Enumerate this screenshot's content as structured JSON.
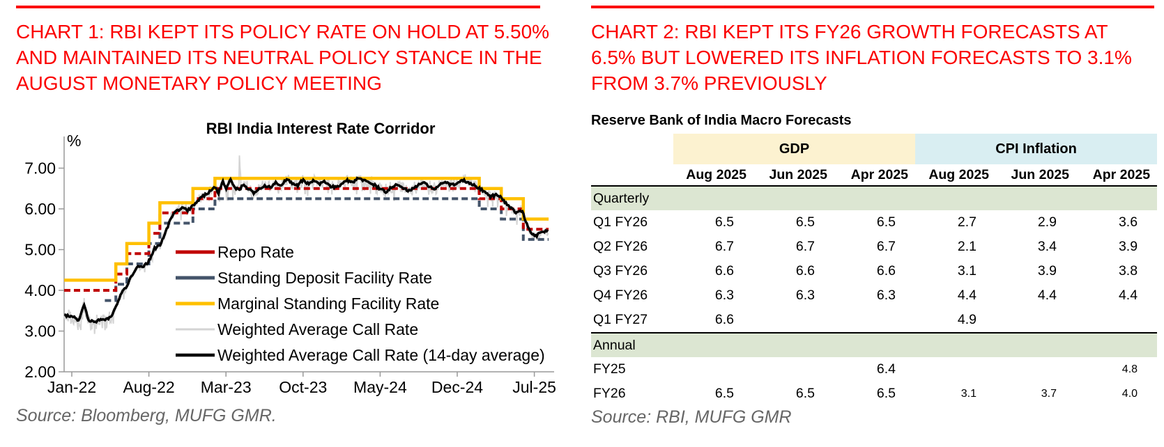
{
  "accent_red": "#fb0000",
  "left_panel": {
    "heading": "CHART 1: RBI KEPT ITS POLICY RATE ON HOLD AT 5.50%\nAND MAINTAINED ITS NEUTRAL POLICY STANCE IN THE\nAUGUST MONETARY POLICY MEETING",
    "source": "Source: Bloomberg, MUFG GMR."
  },
  "right_panel": {
    "heading": "CHART 2: RBI KEPT ITS FY26 GROWTH FORECASTS AT\n6.5% BUT LOWERED ITS INFLATION FORECASTS TO 3.1%\nFROM 3.7% PREVIOUSLY",
    "source": "Source: RBI, MUFG GMR"
  },
  "chart_data": [
    {
      "type": "line",
      "title": "RBI India Interest Rate Corridor",
      "ylabel": "%",
      "ylim": [
        2.0,
        7.6
      ],
      "yticks": [
        2,
        3,
        4,
        5,
        6,
        7
      ],
      "ytick_format": "0.00",
      "x_unit": "months since Jan-2022",
      "x_end": 43.3,
      "xtick_months": [
        0,
        7,
        14,
        21,
        28,
        35,
        42
      ],
      "xtick_labels": [
        "Jan-22",
        "Aug-22",
        "Mar-23",
        "Oct-23",
        "May-24",
        "Dec-24",
        "Jul-25"
      ],
      "legend_position": "inside lower-left",
      "grid": false,
      "axis_color": "#999999",
      "wacr_anchors": [
        [
          0,
          3.38
        ],
        [
          0.6,
          3.24
        ],
        [
          1.1,
          3.66
        ],
        [
          1.5,
          3.28
        ],
        [
          2,
          3.22
        ],
        [
          2.5,
          3.26
        ],
        [
          3,
          3.28
        ],
        [
          3.5,
          3.33
        ],
        [
          4,
          3.6
        ],
        [
          4.5,
          3.92
        ],
        [
          5,
          4.12
        ],
        [
          5.5,
          4.38
        ],
        [
          6,
          4.6
        ],
        [
          6.5,
          4.56
        ],
        [
          7,
          4.72
        ],
        [
          7.5,
          5.02
        ],
        [
          8,
          5.12
        ],
        [
          8.5,
          5.4
        ],
        [
          9,
          5.78
        ],
        [
          9.5,
          5.96
        ],
        [
          10,
          6.02
        ],
        [
          10.5,
          5.96
        ],
        [
          11,
          6.08
        ],
        [
          11.5,
          6.22
        ],
        [
          12,
          6.32
        ],
        [
          12.5,
          6.42
        ],
        [
          13,
          6.56
        ],
        [
          13.3,
          6.38
        ],
        [
          13.7,
          6.68
        ],
        [
          14,
          6.48
        ],
        [
          14.4,
          6.72
        ],
        [
          14.8,
          6.52
        ],
        [
          15.2,
          6.45
        ],
        [
          15.6,
          6.62
        ],
        [
          16,
          6.5
        ],
        [
          16.5,
          6.38
        ],
        [
          17,
          6.48
        ],
        [
          17.5,
          6.58
        ],
        [
          18,
          6.52
        ],
        [
          18.5,
          6.66
        ],
        [
          19,
          6.56
        ],
        [
          19.5,
          6.74
        ],
        [
          20,
          6.64
        ],
        [
          20.5,
          6.56
        ],
        [
          21,
          6.72
        ],
        [
          21.5,
          6.6
        ],
        [
          22,
          6.7
        ],
        [
          22.5,
          6.62
        ],
        [
          23,
          6.66
        ],
        [
          23.5,
          6.56
        ],
        [
          24,
          6.52
        ],
        [
          24.5,
          6.62
        ],
        [
          25,
          6.7
        ],
        [
          25.5,
          6.66
        ],
        [
          26,
          6.74
        ],
        [
          26.5,
          6.7
        ],
        [
          27,
          6.64
        ],
        [
          27.5,
          6.58
        ],
        [
          28,
          6.5
        ],
        [
          28.5,
          6.42
        ],
        [
          29,
          6.52
        ],
        [
          29.5,
          6.6
        ],
        [
          30,
          6.54
        ],
        [
          30.5,
          6.46
        ],
        [
          31,
          6.5
        ],
        [
          31.5,
          6.6
        ],
        [
          32,
          6.64
        ],
        [
          32.5,
          6.54
        ],
        [
          33,
          6.5
        ],
        [
          33.5,
          6.6
        ],
        [
          34,
          6.64
        ],
        [
          34.5,
          6.58
        ],
        [
          35,
          6.64
        ],
        [
          35.5,
          6.7
        ],
        [
          36,
          6.66
        ],
        [
          36.5,
          6.6
        ],
        [
          37,
          6.5
        ],
        [
          37.5,
          6.42
        ],
        [
          38,
          6.3
        ],
        [
          38.5,
          6.34
        ],
        [
          39,
          6.28
        ],
        [
          39.5,
          6.1
        ],
        [
          40,
          6.0
        ],
        [
          40.4,
          5.9
        ],
        [
          40.8,
          5.96
        ],
        [
          41,
          5.88
        ],
        [
          41.4,
          5.55
        ],
        [
          41.8,
          5.38
        ],
        [
          42.2,
          5.34
        ],
        [
          42.6,
          5.42
        ],
        [
          43.1,
          5.46
        ]
      ],
      "wacr_spikes": [
        [
          15.1,
          6.55
        ],
        [
          15.2,
          7.37
        ],
        [
          15.35,
          6.5
        ]
      ],
      "series": [
        {
          "name": "Repo Rate",
          "color": "#c00000",
          "style": "step-dashed",
          "width": 4,
          "steps": [
            [
              0,
              4.0
            ],
            [
              4,
              4.4
            ],
            [
              5,
              4.9
            ],
            [
              7,
              5.4
            ],
            [
              8,
              5.9
            ],
            [
              11,
              6.25
            ],
            [
              13,
              6.5
            ],
            [
              37,
              6.25
            ],
            [
              39,
              6.0
            ],
            [
              41,
              5.5
            ]
          ]
        },
        {
          "name": "Standing Deposit Facility Rate",
          "color": "#44546a",
          "style": "step-dashed",
          "width": 4,
          "steps": [
            [
              3,
              3.75
            ],
            [
              4,
              4.15
            ],
            [
              5,
              4.65
            ],
            [
              7,
              5.15
            ],
            [
              8,
              5.65
            ],
            [
              11,
              6.0
            ],
            [
              13,
              6.25
            ],
            [
              37,
              6.0
            ],
            [
              39,
              5.75
            ],
            [
              41,
              5.25
            ]
          ]
        },
        {
          "name": "Marginal Standing Facility Rate",
          "color": "#ffc000",
          "style": "step",
          "width": 4.5,
          "steps": [
            [
              0,
              4.25
            ],
            [
              4,
              4.65
            ],
            [
              5,
              5.15
            ],
            [
              7,
              5.65
            ],
            [
              8,
              6.15
            ],
            [
              11,
              6.5
            ],
            [
              13,
              6.75
            ],
            [
              37,
              6.5
            ],
            [
              39,
              6.25
            ],
            [
              41,
              5.75
            ]
          ]
        },
        {
          "name": "Weighted Average Call Rate",
          "color": "#d4d4d4",
          "style": "noisy",
          "width": 2
        },
        {
          "name": "Weighted Average Call Rate (14-day average)",
          "color": "#000000",
          "style": "smooth",
          "width": 3.5
        }
      ]
    },
    {
      "type": "table",
      "title": "Reserve Bank of India Macro Forecasts",
      "col_groups": [
        {
          "label": "GDP",
          "bg": "#fcf2d0"
        },
        {
          "label": "CPI Inflation",
          "bg": "#d9eef2"
        }
      ],
      "columns": [
        "Aug 2025",
        "Jun 2025",
        "Apr 2025",
        "Aug 2025",
        "Jun 2025",
        "Apr 2025"
      ],
      "section_bg": "#dce6d2",
      "rows": [
        {
          "label": "Quarterly",
          "type": "section"
        },
        {
          "label": "Q1 FY26",
          "values": [
            "6.5",
            "6.5",
            "6.5",
            "2.7",
            "2.9",
            "3.6"
          ]
        },
        {
          "label": "Q2 FY26",
          "values": [
            "6.7",
            "6.7",
            "6.7",
            "2.1",
            "3.4",
            "3.9"
          ]
        },
        {
          "label": "Q3 FY26",
          "values": [
            "6.6",
            "6.6",
            "6.6",
            "3.1",
            "3.9",
            "3.8"
          ]
        },
        {
          "label": "Q4 FY26",
          "values": [
            "6.3",
            "6.3",
            "6.3",
            "4.4",
            "4.4",
            "4.4"
          ]
        },
        {
          "label": "Q1 FY27",
          "values": [
            "6.6",
            "",
            "",
            "4.9",
            "",
            ""
          ],
          "border_bottom": true
        },
        {
          "label": "Annual",
          "type": "section"
        },
        {
          "label": "FY25",
          "values": [
            "",
            "",
            "6.4",
            "",
            "",
            "4.8"
          ],
          "small_cpi": true
        },
        {
          "label": "FY26",
          "values": [
            "6.5",
            "6.5",
            "6.5",
            "3.1",
            "3.7",
            "4.0"
          ],
          "small_cpi": true
        }
      ]
    }
  ]
}
